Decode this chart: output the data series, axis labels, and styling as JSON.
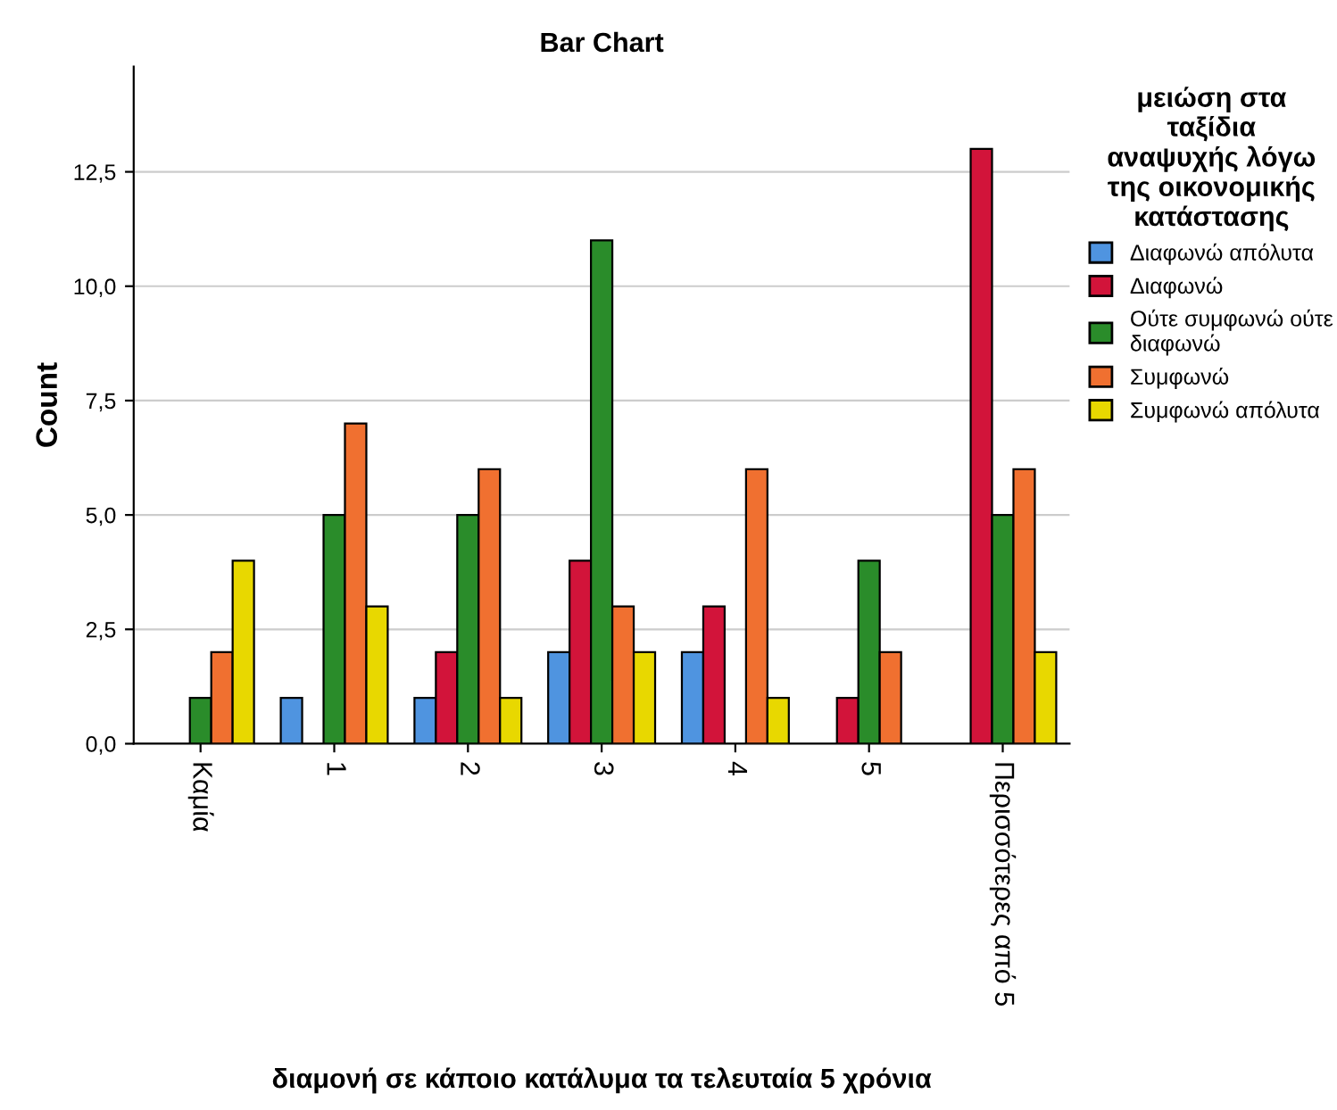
{
  "chart_data": {
    "type": "bar",
    "title": "Bar Chart",
    "xlabel": "διαμονή σε κάποιο κατάλυμα τα τελευταία 5 χρόνια",
    "ylabel": "Count",
    "legend_title": "μειώση στα\nταξίδια\nαναψυχής λόγω\nτης οικονομικής\nκατάστασης",
    "categories": [
      "Καμία",
      "1",
      "2",
      "3",
      "4",
      "5",
      "Περισσότερες από 5"
    ],
    "series": [
      {
        "name": "Διαφωνώ απόλυτα",
        "color": "#4f94e0",
        "values": [
          null,
          1,
          1,
          2,
          2,
          null,
          null
        ]
      },
      {
        "name": "Διαφωνώ",
        "color": "#d2143a",
        "values": [
          null,
          null,
          2,
          4,
          3,
          1,
          13
        ]
      },
      {
        "name": "Ούτε συμφωνώ ούτε\nδιαφωνώ",
        "color": "#2a8c2a",
        "values": [
          1,
          5,
          5,
          11,
          null,
          4,
          5
        ]
      },
      {
        "name": "Συμφωνώ",
        "color": "#f07030",
        "values": [
          2,
          7,
          6,
          3,
          6,
          2,
          6
        ]
      },
      {
        "name": "Συμφωνώ απόλυτα",
        "color": "#e8d800",
        "values": [
          4,
          3,
          1,
          2,
          1,
          null,
          2
        ]
      }
    ],
    "ylim": [
      0,
      14.8
    ],
    "yticks": [
      {
        "value": 0,
        "label": "0,0"
      },
      {
        "value": 2.5,
        "label": "2,5"
      },
      {
        "value": 5,
        "label": "5,0"
      },
      {
        "value": 7.5,
        "label": "7,5"
      },
      {
        "value": 10,
        "label": "10,0"
      },
      {
        "value": 12.5,
        "label": "12,5"
      }
    ],
    "grid": "y",
    "legend": "right"
  }
}
